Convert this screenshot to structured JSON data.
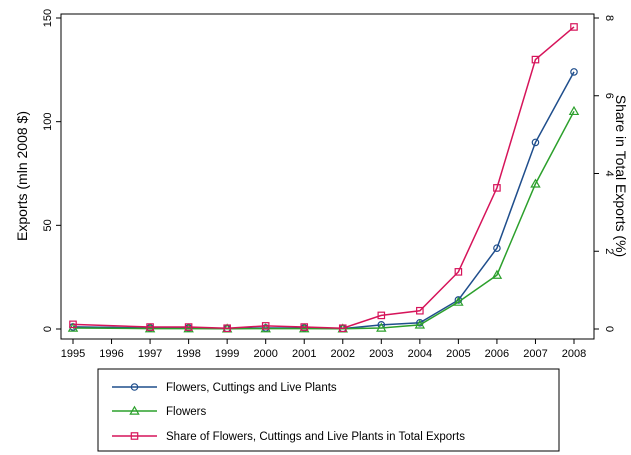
{
  "chart_data": {
    "type": "line",
    "title": "",
    "xlabel": "",
    "ylabel": "Exports (mln 2008 $)",
    "y2label": "Share in Total Exports (%)",
    "x": [
      1995,
      1996,
      1997,
      1998,
      1999,
      2000,
      2001,
      2002,
      2003,
      2004,
      2005,
      2006,
      2007,
      2008
    ],
    "xticks": [
      "1995",
      "1996",
      "1997",
      "1998",
      "1999",
      "2000",
      "2001",
      "2002",
      "2003",
      "2004",
      "2005",
      "2006",
      "2007",
      "2008"
    ],
    "ylim": [
      0,
      150
    ],
    "yticks": [
      "0",
      "50",
      "100",
      "150"
    ],
    "y2lim": [
      0,
      8
    ],
    "y2ticks": [
      "0",
      "2",
      "4",
      "6",
      "8"
    ],
    "grid": false,
    "legend_position": "bottom",
    "series": [
      {
        "name": "Flowers, Cuttings and Live Plants",
        "axis": "left",
        "marker": "circle",
        "color": "#1f4e8c",
        "values": [
          1,
          null,
          0.5,
          0.5,
          0.2,
          0.5,
          0.5,
          0.2,
          2,
          3,
          14,
          39,
          90,
          124
        ]
      },
      {
        "name": "Flowers",
        "axis": "left",
        "marker": "triangle",
        "color": "#2ca02c",
        "values": [
          0.5,
          null,
          0.2,
          0.2,
          0.1,
          0.2,
          0.2,
          0.1,
          0.5,
          2,
          13,
          26,
          70,
          105
        ]
      },
      {
        "name": "Share of Flowers, Cuttings and Live Plants in Total Exports",
        "axis": "right",
        "marker": "square",
        "color": "#d6145a",
        "values": [
          0.12,
          null,
          0.05,
          0.05,
          0.02,
          0.08,
          0.05,
          0.02,
          0.35,
          0.47,
          1.47,
          3.63,
          6.93,
          7.77
        ]
      }
    ]
  }
}
